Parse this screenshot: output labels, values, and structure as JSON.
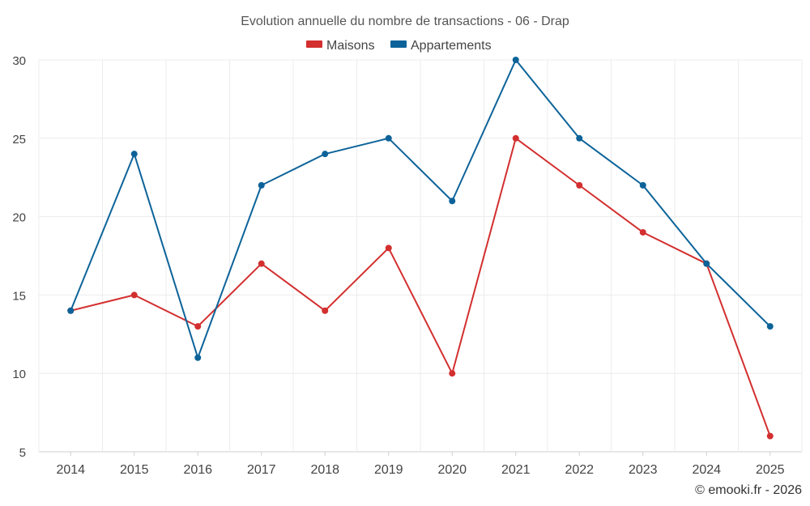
{
  "chart_data": {
    "type": "line",
    "title": "Evolution annuelle du nombre de transactions - 06 - Drap",
    "categories": [
      "2014",
      "2015",
      "2016",
      "2017",
      "2018",
      "2019",
      "2020",
      "2021",
      "2022",
      "2023",
      "2024",
      "2025"
    ],
    "series": [
      {
        "name": "Maisons",
        "color": "#d32f2f",
        "values": [
          14,
          15,
          13,
          17,
          14,
          18,
          10,
          25,
          22,
          19,
          17,
          6
        ]
      },
      {
        "name": "Appartements",
        "color": "#0d6399",
        "values": [
          14,
          24,
          11,
          22,
          24,
          25,
          21,
          30,
          25,
          22,
          17,
          13
        ]
      }
    ],
    "y_ticks": [
      5,
      10,
      15,
      20,
      25,
      30
    ],
    "ylim": [
      5,
      30
    ],
    "xlabel": "",
    "ylabel": "",
    "grid": true,
    "legend_position": "top-center"
  },
  "credit": "© emooki.fr - 2026"
}
